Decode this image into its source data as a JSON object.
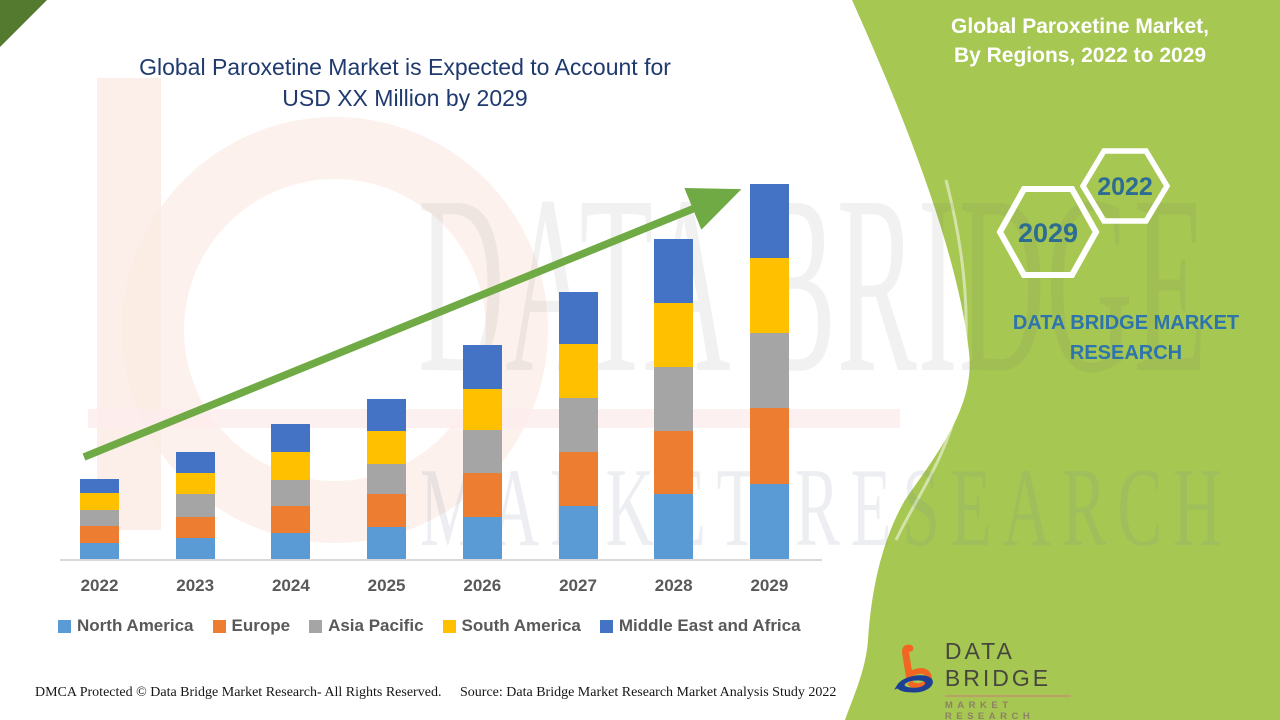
{
  "title": {
    "line1": "Global Paroxetine Market is Expected to Account for",
    "line2": "USD XX Million by 2029"
  },
  "panel": {
    "header_line1": "Global Paroxetine Market,",
    "header_line2": "By Regions, 2022 to 2029",
    "hex_back_year": "2022",
    "hex_front_year": "2029",
    "brand_line1": "DATA BRIDGE MARKET",
    "brand_line2": "RESEARCH",
    "green": "#a6c751"
  },
  "watermark": {
    "line1": "DATA BRIDGE",
    "line2": "MARKET RESEARCH"
  },
  "logo": {
    "name": "DATA BRIDGE",
    "subtitle": "MARKET RESEARCH"
  },
  "footer": {
    "dmca": "DMCA Protected © Data Bridge Market Research- All Rights Reserved.",
    "source": "Source: Data Bridge Market Research Market Analysis Study 2022"
  },
  "chart_data": {
    "type": "bar",
    "stacked": true,
    "title": "Global Paroxetine Market is Expected to Account for USD XX Million by 2029",
    "xlabel": "",
    "ylabel": "",
    "units": "USD XX Million (axis values not shown; series values are relative estimates)",
    "value_axis_visible": false,
    "grid": false,
    "legend_position": "bottom",
    "trendline": "upward green arrow across bar tops",
    "categories": [
      "2022",
      "2023",
      "2024",
      "2025",
      "2026",
      "2027",
      "2028",
      "2029"
    ],
    "series": [
      {
        "name": "North America",
        "color": "#5b9bd5",
        "values": [
          17,
          22,
          27,
          33,
          43,
          54,
          66,
          76
        ]
      },
      {
        "name": "Europe",
        "color": "#ed7d31",
        "values": [
          17,
          21,
          27,
          33,
          44,
          54,
          63,
          76
        ]
      },
      {
        "name": "Asia Pacific",
        "color": "#a5a5a5",
        "values": [
          16,
          23,
          26,
          30,
          43,
          54,
          64,
          75
        ]
      },
      {
        "name": "South America",
        "color": "#ffc000",
        "values": [
          17,
          21,
          28,
          33,
          41,
          54,
          64,
          75
        ]
      },
      {
        "name": "Middle East and Africa",
        "color": "#4472c4",
        "values": [
          14,
          21,
          28,
          32,
          44,
          52,
          64,
          74
        ]
      }
    ]
  }
}
